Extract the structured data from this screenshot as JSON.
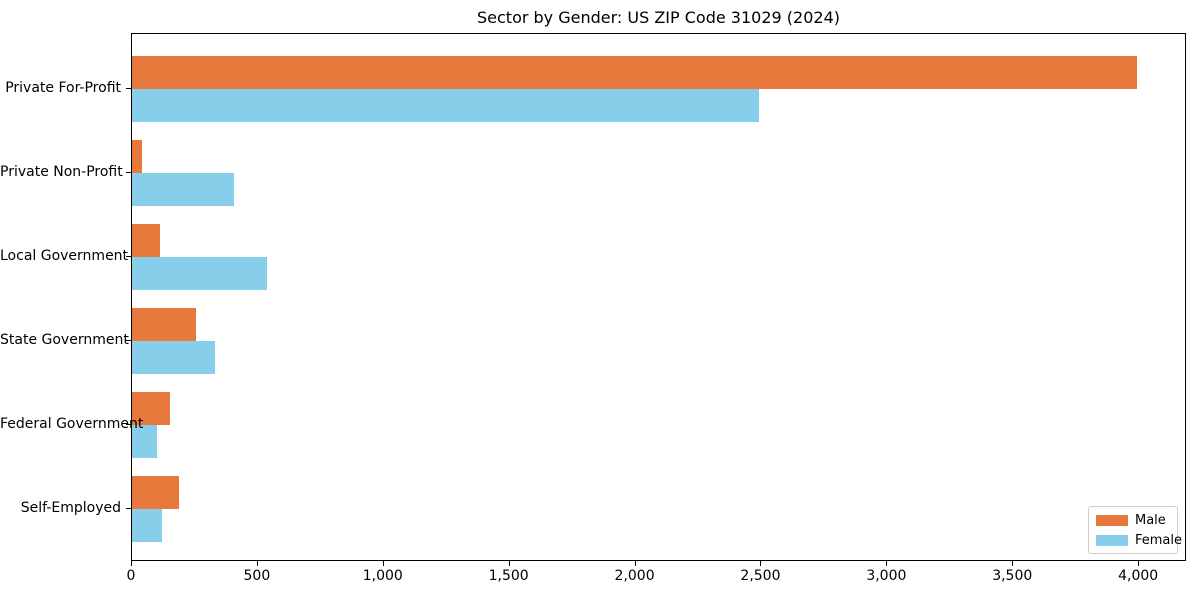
{
  "title": "Sector by Gender: US ZIP Code 31029 (2024)",
  "colors": {
    "male": "#e8793c",
    "female": "#87ceeb",
    "axis": "#000000",
    "legend_border": "#cccccc",
    "background": "#ffffff"
  },
  "legend": {
    "position": "lower right",
    "entries": [
      "Male",
      "Female"
    ]
  },
  "chart_data": {
    "type": "bar",
    "orientation": "horizontal",
    "title": "Sector by Gender: US ZIP Code 31029 (2024)",
    "categories": [
      "Private For-Profit",
      "Private Non-Profit",
      "Local Government",
      "State Government",
      "Federal Government",
      "Self-Employed"
    ],
    "series": [
      {
        "name": "Male",
        "color": "#e8793c",
        "values": [
          3990,
          40,
          110,
          255,
          150,
          185
        ]
      },
      {
        "name": "Female",
        "color": "#87ceeb",
        "values": [
          2490,
          405,
          535,
          330,
          100,
          120
        ]
      }
    ],
    "xlabel": "",
    "ylabel": "",
    "xlim": [
      0,
      4190
    ],
    "xticks": [
      0,
      500,
      1000,
      1500,
      2000,
      2500,
      3000,
      3500,
      4000
    ],
    "xtick_labels": [
      "0",
      "500",
      "1,000",
      "1,500",
      "2,000",
      "2,500",
      "3,000",
      "3,500",
      "4,000"
    ],
    "grid": false,
    "legend_position": "lower right"
  }
}
